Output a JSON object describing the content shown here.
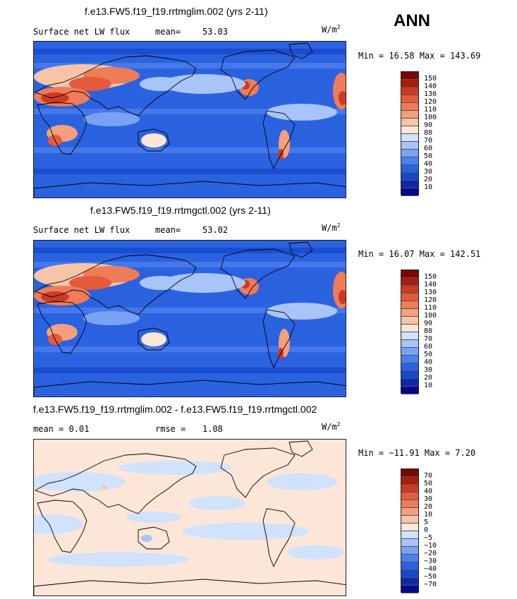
{
  "season": "ANN",
  "panels": [
    {
      "title": "f.e13.FW5.f19_f19.rrtmglim.002 (yrs 2-11)",
      "left_label": "Surface net LW flux",
      "mean_label": "mean=",
      "mean_value": "53.03",
      "units": "W/m",
      "units_sup": "2",
      "minmax": "Min =  16.58 Max = 143.69",
      "colors": [
        "#08088a",
        "#0c2aa8",
        "#1648cc",
        "#2a62e0",
        "#4c80ee",
        "#7aa2f4",
        "#a8c4f8",
        "#d0e2fc",
        "#fbe6d8",
        "#f8c4a8",
        "#f4a07c",
        "#ee7c58",
        "#e45a3c",
        "#cc3a24",
        "#a81c0e",
        "#7c0606"
      ],
      "levels": [
        "150",
        "140",
        "130",
        "120",
        "110",
        "100",
        "90",
        "80",
        "70",
        "60",
        "50",
        "40",
        "30",
        "20",
        "10"
      ]
    },
    {
      "title": "f.e13.FW5.f19_f19.rrtmgctl.002 (yrs 2-11)",
      "left_label": "Surface net LW flux",
      "mean_label": "mean=",
      "mean_value": "53.02",
      "units": "W/m",
      "units_sup": "2",
      "minmax": "Min =  16.07 Max = 142.51",
      "colors": [
        "#08088a",
        "#0c2aa8",
        "#1648cc",
        "#2a62e0",
        "#4c80ee",
        "#7aa2f4",
        "#a8c4f8",
        "#d0e2fc",
        "#fbe6d8",
        "#f8c4a8",
        "#f4a07c",
        "#ee7c58",
        "#e45a3c",
        "#cc3a24",
        "#a81c0e",
        "#7c0606"
      ],
      "levels": [
        "150",
        "140",
        "130",
        "120",
        "110",
        "100",
        "90",
        "80",
        "70",
        "60",
        "50",
        "40",
        "30",
        "20",
        "10"
      ]
    },
    {
      "title": "f.e13.FW5.f19_f19.rrtmglim.002 - f.e13.FW5.f19_f19.rrtmgctl.002",
      "left_label": "mean =   0.01",
      "mean_label": "rmse =",
      "mean_value": "1.08",
      "units": "W/m",
      "units_sup": "2",
      "minmax": "Min = −11.91 Max =   7.20",
      "colors": [
        "#08088a",
        "#0c2aa8",
        "#1648cc",
        "#2a62e0",
        "#4c80ee",
        "#7aa2f4",
        "#a8c4f8",
        "#d0e2fc",
        "#fbe6d8",
        "#f8c4a8",
        "#f4a07c",
        "#ee7c58",
        "#e45a3c",
        "#cc3a24",
        "#a81c0e",
        "#7c0606"
      ],
      "levels": [
        "70",
        "50",
        "40",
        "30",
        "20",
        "10",
        "5",
        "0",
        "−5",
        "−10",
        "−20",
        "−30",
        "−40",
        "−50",
        "−70"
      ]
    }
  ]
}
